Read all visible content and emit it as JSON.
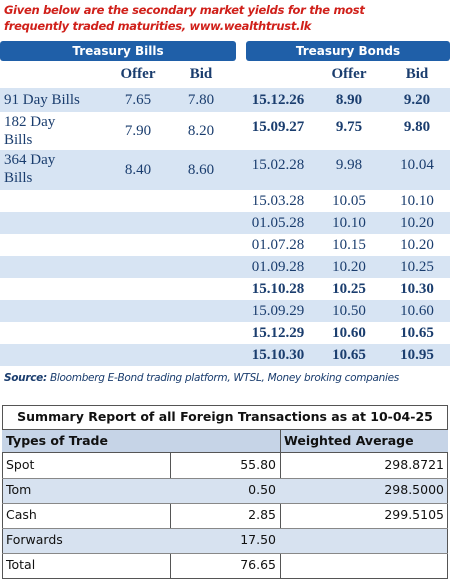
{
  "heading": "Given below are the secondary market yields for the most frequently traded maturities, www.wealthtrust.lk",
  "treasury": {
    "bills_title": "Treasury Bills",
    "bonds_title": "Treasury Bonds",
    "bills_headers": [
      "Offer",
      "Bid"
    ],
    "bonds_headers": [
      "Offer",
      "Bid"
    ],
    "bills": [
      {
        "name": "91 Day Bills",
        "offer": "7.65",
        "bid": "7.80"
      },
      {
        "name": "182 Day Bills",
        "offer": "7.90",
        "bid": "8.20"
      },
      {
        "name": "364 Day Bills",
        "offer": "8.40",
        "bid": "8.60"
      }
    ],
    "bonds": [
      {
        "maturity": "15.12.26",
        "offer": "8.90",
        "bid": "9.20",
        "bold": true
      },
      {
        "maturity": "15.09.27",
        "offer": "9.75",
        "bid": "9.80",
        "bold": true
      },
      {
        "maturity": "15.02.28",
        "offer": "9.98",
        "bid": "10.04",
        "bold": false
      },
      {
        "maturity": "15.03.28",
        "offer": "10.05",
        "bid": "10.10",
        "bold": false
      },
      {
        "maturity": "01.05.28",
        "offer": "10.10",
        "bid": "10.20",
        "bold": false
      },
      {
        "maturity": "01.07.28",
        "offer": "10.15",
        "bid": "10.20",
        "bold": false
      },
      {
        "maturity": "01.09.28",
        "offer": "10.20",
        "bid": "10.25",
        "bold": false
      },
      {
        "maturity": "15.10.28",
        "offer": "10.25",
        "bid": "10.30",
        "bold": true
      },
      {
        "maturity": "15.09.29",
        "offer": "10.50",
        "bid": "10.60",
        "bold": false
      },
      {
        "maturity": "15.12.29",
        "offer": "10.60",
        "bid": "10.65",
        "bold": true
      },
      {
        "maturity": "15.10.30",
        "offer": "10.65",
        "bid": "10.95",
        "bold": true
      }
    ]
  },
  "source": {
    "label": "Source:",
    "text": "Bloomberg E-Bond trading platform, WTSL, Money broking companies"
  },
  "summary": {
    "title": "Summary Report of all Foreign Transactions as at 10-04-25",
    "headers": [
      "Types of Trade",
      "Weighted Average"
    ],
    "rows": [
      [
        "Spot",
        "55.80",
        "298.8721"
      ],
      [
        "Tom",
        "0.50",
        "298.5000"
      ],
      [
        "Cash",
        "2.85",
        "299.5105"
      ],
      [
        "Forwards",
        "17.50"
      ],
      [
        "Total",
        "76.65"
      ]
    ]
  }
}
